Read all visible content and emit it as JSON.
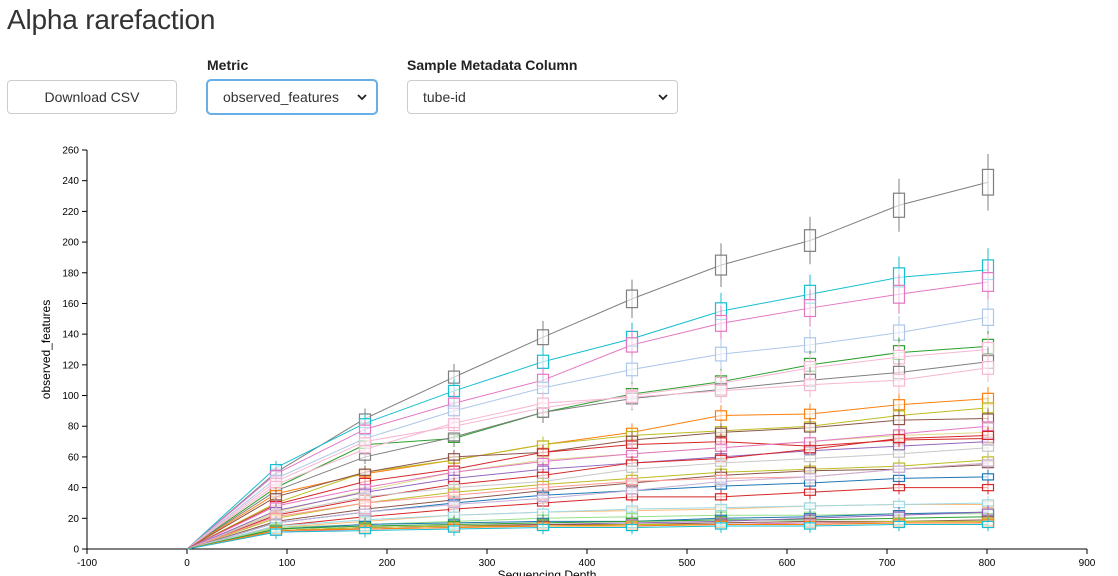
{
  "page": {
    "title": "Alpha rarefaction"
  },
  "controls": {
    "download_label": "Download CSV",
    "metric": {
      "label": "Metric",
      "selected": "observed_features"
    },
    "metadata": {
      "label": "Sample Metadata Column",
      "selected": "tube-id"
    }
  },
  "chart_data": {
    "type": "line",
    "xlabel": "Sequencing Depth",
    "ylabel": "observed_features",
    "xlim": [
      -100,
      900
    ],
    "ylim": [
      0,
      260
    ],
    "x_ticks": [
      -100,
      0,
      100,
      200,
      300,
      400,
      500,
      600,
      700,
      800,
      900
    ],
    "y_ticks": [
      0,
      20,
      40,
      60,
      80,
      100,
      120,
      140,
      160,
      180,
      200,
      220,
      240,
      260
    ],
    "x": [
      0,
      89,
      178,
      267,
      356,
      445,
      534,
      623,
      712,
      801
    ],
    "marker": "boxplot",
    "series": [
      {
        "color": "#7f7f7f",
        "values": [
          0,
          50,
          85,
          112,
          138,
          163,
          185,
          201,
          224,
          239
        ]
      },
      {
        "color": "#17becf",
        "values": [
          0,
          53,
          82,
          103,
          122,
          137,
          155,
          166,
          177,
          182
        ]
      },
      {
        "color": "#e377c2",
        "values": [
          0,
          49,
          78,
          95,
          110,
          133,
          147,
          157,
          166,
          174
        ]
      },
      {
        "color": "#aec7e8",
        "values": [
          0,
          46,
          72,
          90,
          105,
          117,
          127,
          133,
          141,
          151
        ]
      },
      {
        "color": "#2ca02c",
        "values": [
          0,
          40,
          68,
          72,
          89,
          101,
          109,
          120,
          128,
          132
        ]
      },
      {
        "color": "#f7b6d2",
        "values": [
          0,
          44,
          70,
          80,
          92,
          100,
          108,
          118,
          125,
          130
        ]
      },
      {
        "color": "#7f7f7f",
        "values": [
          0,
          38,
          60,
          73,
          89,
          98,
          104,
          110,
          115,
          122
        ]
      },
      {
        "color": "#f7b6d2",
        "values": [
          0,
          42,
          65,
          82,
          95,
          99,
          103,
          107,
          110,
          118
        ]
      },
      {
        "color": "#ff7f0e",
        "values": [
          0,
          36,
          49,
          58,
          68,
          76,
          87,
          88,
          94,
          98
        ]
      },
      {
        "color": "#bcbd22",
        "values": [
          0,
          30,
          50,
          58,
          68,
          74,
          77,
          80,
          87,
          92
        ]
      },
      {
        "color": "#8c564b",
        "values": [
          0,
          34,
          50,
          60,
          63,
          71,
          76,
          79,
          84,
          85
        ]
      },
      {
        "color": "#d62728",
        "values": [
          0,
          29,
          44,
          52,
          63,
          68,
          70,
          67,
          71,
          72
        ]
      },
      {
        "color": "#dbdb8d",
        "values": [
          0,
          24,
          38,
          50,
          58,
          62,
          66,
          70,
          74,
          76
        ]
      },
      {
        "color": "#e377c2",
        "values": [
          0,
          28,
          40,
          50,
          57,
          62,
          66,
          70,
          75,
          80
        ]
      },
      {
        "color": "#9467bd",
        "values": [
          0,
          25,
          37,
          46,
          52,
          56,
          60,
          64,
          67,
          70
        ]
      },
      {
        "color": "#d62728",
        "values": [
          0,
          22,
          33,
          42,
          48,
          56,
          59,
          65,
          72,
          74
        ]
      },
      {
        "color": "#c7c7c7",
        "values": [
          0,
          23,
          34,
          40,
          44,
          52,
          56,
          59,
          62,
          66
        ]
      },
      {
        "color": "#bcbd22",
        "values": [
          0,
          20,
          30,
          37,
          42,
          46,
          50,
          52,
          54,
          58
        ]
      },
      {
        "color": "#8c564b",
        "values": [
          0,
          18,
          26,
          32,
          38,
          43,
          48,
          51,
          52,
          55
        ]
      },
      {
        "color": "#ff9896",
        "values": [
          0,
          21,
          30,
          35,
          40,
          44,
          46,
          47,
          52,
          56
        ]
      },
      {
        "color": "#1f77b4",
        "values": [
          0,
          17,
          24,
          30,
          35,
          38,
          41,
          43,
          46,
          47
        ]
      },
      {
        "color": "#d62728",
        "values": [
          0,
          15,
          21,
          26,
          30,
          34,
          34,
          37,
          40,
          40
        ]
      },
      {
        "color": "#c5b0d5",
        "values": [
          0,
          17,
          24,
          29,
          33,
          38,
          44,
          47,
          52,
          56
        ]
      },
      {
        "color": "#ffbb78",
        "values": [
          0,
          14,
          18,
          22,
          24,
          25,
          26,
          28,
          29,
          29
        ]
      },
      {
        "color": "#9edae5",
        "values": [
          0,
          15,
          19,
          22,
          24,
          26,
          27,
          28,
          29,
          30
        ]
      },
      {
        "color": "#98df8a",
        "values": [
          0,
          14,
          16,
          18,
          20,
          21,
          22,
          22,
          23,
          23
        ]
      },
      {
        "color": "#1f77b4",
        "values": [
          0,
          13,
          16,
          17,
          18,
          18,
          20,
          21,
          23,
          24
        ]
      },
      {
        "color": "#2ca02c",
        "values": [
          0,
          13,
          15,
          16,
          17,
          18,
          19,
          19,
          20,
          21
        ]
      },
      {
        "color": "#9467bd",
        "values": [
          0,
          12,
          14,
          15,
          16,
          17,
          18,
          20,
          22,
          24
        ]
      },
      {
        "color": "#8c564b",
        "values": [
          0,
          12,
          14,
          15,
          16,
          16,
          17,
          18,
          18,
          19
        ]
      },
      {
        "color": "#bcbd22",
        "values": [
          0,
          12,
          14,
          15,
          15,
          16,
          16,
          17,
          18,
          18
        ]
      },
      {
        "color": "#e377c2",
        "values": [
          0,
          11,
          13,
          14,
          15,
          15,
          16,
          17,
          17,
          17
        ]
      },
      {
        "color": "#ff7f0e",
        "values": [
          0,
          12,
          13,
          14,
          15,
          15,
          16,
          16,
          17,
          17
        ]
      },
      {
        "color": "#17becf",
        "values": [
          0,
          11,
          12,
          13,
          14,
          14,
          15,
          15,
          16,
          16
        ]
      }
    ]
  }
}
